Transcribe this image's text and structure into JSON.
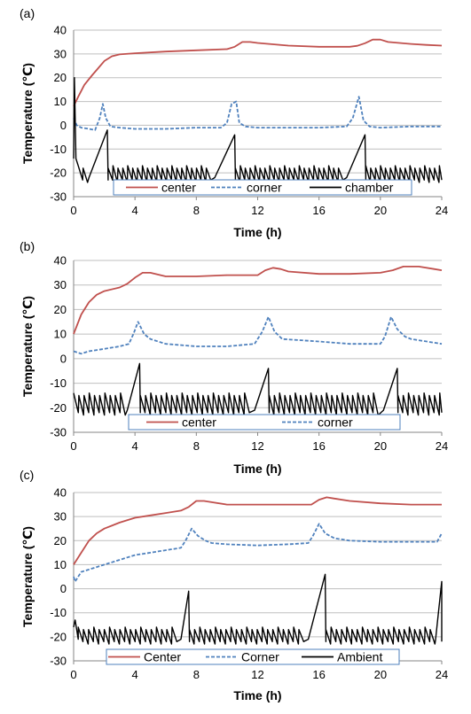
{
  "chart_data": [
    {
      "type": "line",
      "panel_label": "(a)",
      "xlabel": "Time (h)",
      "ylabel": "Temperature (℃)",
      "xlim": [
        0,
        24
      ],
      "ylim": [
        -30,
        40
      ],
      "x_ticks": [
        0,
        4,
        8,
        12,
        16,
        20,
        24
      ],
      "y_ticks": [
        -30,
        -20,
        -10,
        0,
        10,
        20,
        30,
        40
      ],
      "grid": "horizontal",
      "legend_placement": "bottom",
      "series": [
        {
          "name": "center",
          "color": "#C0504D",
          "style": "solid",
          "points": [
            [
              0,
              8
            ],
            [
              0.3,
              12
            ],
            [
              0.7,
              17
            ],
            [
              1.2,
              21
            ],
            [
              1.6,
              24
            ],
            [
              2,
              27
            ],
            [
              2.5,
              29
            ],
            [
              3,
              29.8
            ],
            [
              4,
              30.3
            ],
            [
              6,
              31
            ],
            [
              8,
              31.5
            ],
            [
              10,
              32
            ],
            [
              10.5,
              33
            ],
            [
              11,
              35
            ],
            [
              11.5,
              35
            ],
            [
              12,
              34.6
            ],
            [
              14,
              33.5
            ],
            [
              16,
              33
            ],
            [
              18,
              33
            ],
            [
              18.5,
              33.4
            ],
            [
              19,
              34.5
            ],
            [
              19.5,
              36
            ],
            [
              20,
              36
            ],
            [
              20.5,
              35
            ],
            [
              22,
              34.2
            ],
            [
              23,
              33.8
            ],
            [
              24,
              33.5
            ]
          ]
        },
        {
          "name": "corner",
          "color": "#4F81BD",
          "style": "dashed",
          "points": [
            [
              0,
              3
            ],
            [
              0.2,
              0
            ],
            [
              0.5,
              -1
            ],
            [
              1,
              -1.5
            ],
            [
              1.4,
              -2
            ],
            [
              1.7,
              3
            ],
            [
              1.9,
              9
            ],
            [
              2.1,
              3
            ],
            [
              2.4,
              -0.5
            ],
            [
              3,
              -1
            ],
            [
              4,
              -1.5
            ],
            [
              6,
              -1.5
            ],
            [
              8,
              -1
            ],
            [
              9.6,
              -1
            ],
            [
              10,
              1
            ],
            [
              10.3,
              9
            ],
            [
              10.6,
              10
            ],
            [
              10.8,
              1
            ],
            [
              11.2,
              -0.5
            ],
            [
              12,
              -1
            ],
            [
              14,
              -1
            ],
            [
              16,
              -1
            ],
            [
              17.8,
              -0.5
            ],
            [
              18.2,
              3
            ],
            [
              18.6,
              12
            ],
            [
              18.9,
              2
            ],
            [
              19.3,
              -0.5
            ],
            [
              20,
              -1
            ],
            [
              22,
              -0.5
            ],
            [
              24,
              -0.5
            ]
          ]
        },
        {
          "name": "chamber",
          "color": "#000000",
          "style": "solid",
          "sawtooth": {
            "x_start": 0.3,
            "period": 0.32,
            "low": -23,
            "high": -17
          },
          "peaks": [
            [
              1.0,
              2.2,
              -2
            ],
            [
              9.2,
              10.5,
              -4
            ],
            [
              17.8,
              19.0,
              -4
            ]
          ],
          "initial": [
            [
              0,
              -14
            ],
            [
              0.05,
              20
            ],
            [
              0.15,
              -14
            ]
          ]
        }
      ]
    },
    {
      "type": "line",
      "panel_label": "(b)",
      "xlabel": "Time (h)",
      "ylabel": "Temperature (℃)",
      "xlim": [
        0,
        24
      ],
      "ylim": [
        -30,
        40
      ],
      "x_ticks": [
        0,
        4,
        8,
        12,
        16,
        20,
        24
      ],
      "y_ticks": [
        -30,
        -20,
        -10,
        0,
        10,
        20,
        30,
        40
      ],
      "grid": "horizontal",
      "legend_placement": "bottom",
      "series": [
        {
          "name": "center",
          "color": "#C0504D",
          "style": "solid",
          "points": [
            [
              0,
              10
            ],
            [
              0.5,
              18
            ],
            [
              1,
              23
            ],
            [
              1.5,
              26
            ],
            [
              2,
              27.5
            ],
            [
              3,
              29
            ],
            [
              3.5,
              30.5
            ],
            [
              4,
              33
            ],
            [
              4.5,
              35
            ],
            [
              5,
              35
            ],
            [
              6,
              33.5
            ],
            [
              8,
              33.5
            ],
            [
              10,
              34
            ],
            [
              12,
              34
            ],
            [
              12.5,
              36
            ],
            [
              13,
              37
            ],
            [
              13.5,
              36.5
            ],
            [
              14,
              35.5
            ],
            [
              16,
              34.5
            ],
            [
              18,
              34.5
            ],
            [
              20,
              35
            ],
            [
              20.8,
              36
            ],
            [
              21.5,
              37.5
            ],
            [
              22.5,
              37.5
            ],
            [
              23.5,
              36.5
            ],
            [
              24,
              36
            ]
          ]
        },
        {
          "name": "corner",
          "color": "#4F81BD",
          "style": "dashed",
          "points": [
            [
              0,
              3
            ],
            [
              0.5,
              2
            ],
            [
              1,
              3
            ],
            [
              2,
              4
            ],
            [
              3,
              5
            ],
            [
              3.6,
              6
            ],
            [
              3.9,
              10
            ],
            [
              4.2,
              15
            ],
            [
              4.6,
              10
            ],
            [
              5,
              8
            ],
            [
              6,
              6
            ],
            [
              8,
              5
            ],
            [
              10,
              5
            ],
            [
              11.8,
              6
            ],
            [
              12.3,
              11
            ],
            [
              12.7,
              17
            ],
            [
              13.1,
              11
            ],
            [
              13.6,
              8
            ],
            [
              16,
              7
            ],
            [
              18,
              6
            ],
            [
              20,
              6
            ],
            [
              20.3,
              9
            ],
            [
              20.7,
              17
            ],
            [
              21.1,
              12
            ],
            [
              21.6,
              9
            ],
            [
              22,
              8
            ],
            [
              24,
              6
            ]
          ]
        },
        {
          "name": "",
          "color": "#000000",
          "style": "solid",
          "sawtooth": {
            "x_start": 0,
            "period": 0.34,
            "low": -22,
            "high": -14
          },
          "peaks": [
            [
              3.5,
              4.3,
              -2
            ],
            [
              11.8,
              12.7,
              -4
            ],
            [
              20.2,
              21.1,
              -4
            ]
          ],
          "initial": []
        }
      ]
    },
    {
      "type": "line",
      "panel_label": "(c)",
      "xlabel": "Time (h)",
      "ylabel": "Temperature (℃)",
      "xlim": [
        0,
        24
      ],
      "ylim": [
        -30,
        40
      ],
      "x_ticks": [
        0,
        4,
        8,
        12,
        16,
        20,
        24
      ],
      "y_ticks": [
        -30,
        -20,
        -10,
        0,
        10,
        20,
        30,
        40
      ],
      "grid": "horizontal",
      "legend_placement": "bottom",
      "series": [
        {
          "name": "Center",
          "color": "#C0504D",
          "style": "solid",
          "points": [
            [
              0,
              10
            ],
            [
              0.5,
              15
            ],
            [
              1,
              20
            ],
            [
              1.5,
              23
            ],
            [
              2,
              25
            ],
            [
              3,
              27.5
            ],
            [
              4,
              29.5
            ],
            [
              5,
              30.5
            ],
            [
              6,
              31.5
            ],
            [
              7,
              32.5
            ],
            [
              7.5,
              34
            ],
            [
              8,
              36.5
            ],
            [
              8.5,
              36.5
            ],
            [
              9,
              36
            ],
            [
              10,
              35
            ],
            [
              12,
              35
            ],
            [
              14,
              35
            ],
            [
              15.5,
              35
            ],
            [
              16,
              37
            ],
            [
              16.5,
              38
            ],
            [
              17,
              37.5
            ],
            [
              18,
              36.5
            ],
            [
              20,
              35.5
            ],
            [
              22,
              35
            ],
            [
              24,
              35
            ]
          ]
        },
        {
          "name": "Corner",
          "color": "#4F81BD",
          "style": "dashed",
          "points": [
            [
              0,
              5
            ],
            [
              0.1,
              3
            ],
            [
              0.5,
              7
            ],
            [
              1,
              8
            ],
            [
              2,
              10
            ],
            [
              3,
              12
            ],
            [
              4,
              14
            ],
            [
              5,
              15
            ],
            [
              6,
              16
            ],
            [
              7,
              17
            ],
            [
              7.3,
              20
            ],
            [
              7.7,
              25
            ],
            [
              8.1,
              22
            ],
            [
              8.6,
              20
            ],
            [
              9,
              19
            ],
            [
              10,
              18.5
            ],
            [
              12,
              18
            ],
            [
              14,
              18.5
            ],
            [
              15.3,
              19
            ],
            [
              15.6,
              22
            ],
            [
              16,
              27
            ],
            [
              16.4,
              23
            ],
            [
              17,
              21
            ],
            [
              18,
              20
            ],
            [
              20,
              19.5
            ],
            [
              22,
              19.5
            ],
            [
              23.7,
              19.5
            ],
            [
              24,
              23
            ]
          ]
        },
        {
          "name": "Ambient",
          "color": "#000000",
          "style": "solid",
          "sawtooth": {
            "x_start": 0.3,
            "period": 0.34,
            "low": -22,
            "high": -16
          },
          "peaks": [
            [
              7.0,
              7.5,
              -1
            ],
            [
              15.3,
              16.4,
              6
            ],
            [
              23.6,
              24.0,
              3
            ]
          ],
          "initial": [
            [
              0,
              -16
            ],
            [
              0.1,
              -13
            ],
            [
              0.3,
              -21
            ]
          ]
        }
      ]
    }
  ]
}
